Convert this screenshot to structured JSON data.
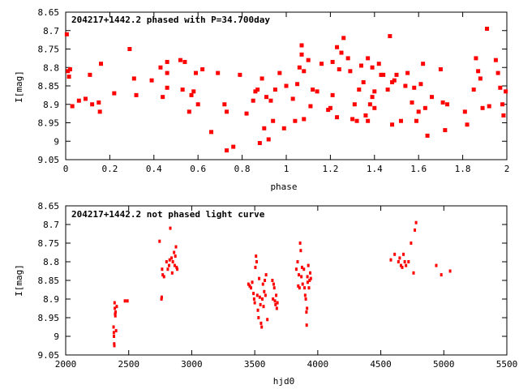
{
  "marker_color": "#ff0000",
  "chart_data": [
    {
      "type": "scatter",
      "title": "204217+1442.2 phased with P=34.700day",
      "xlabel": "phase",
      "ylabel": "I[mag]",
      "xlim": [
        0,
        2
      ],
      "ylim": [
        9.05,
        8.65
      ],
      "y_inverted": true,
      "grid": false,
      "xticks": [
        0,
        0.2,
        0.4,
        0.6,
        0.8,
        1,
        1.2,
        1.4,
        1.6,
        1.8,
        2
      ],
      "xtick_labels": [
        "0",
        "0.2",
        "0.4",
        "0.6",
        "0.8",
        "1",
        "1.2",
        "1.4",
        "1.6",
        "1.8",
        "2"
      ],
      "yticks": [
        8.65,
        8.7,
        8.75,
        8.8,
        8.85,
        8.9,
        8.95,
        9,
        9.05
      ],
      "ytick_labels": [
        "8.65",
        "8.7",
        "8.75",
        "8.8",
        "8.85",
        "8.9",
        "8.95",
        "9",
        "9.05"
      ],
      "series": [
        {
          "marker": "filled-square",
          "points": [
            [
              0.005,
              8.71
            ],
            [
              0.01,
              8.81
            ],
            [
              0.015,
              8.825
            ],
            [
              0.02,
              8.805
            ],
            [
              0.03,
              8.905
            ],
            [
              0.06,
              8.89
            ],
            [
              0.09,
              8.885
            ],
            [
              0.11,
              8.82
            ],
            [
              0.12,
              8.9
            ],
            [
              0.15,
              8.895
            ],
            [
              0.155,
              8.92
            ],
            [
              0.16,
              8.79
            ],
            [
              0.22,
              8.87
            ],
            [
              0.29,
              8.75
            ],
            [
              0.31,
              8.83
            ],
            [
              0.32,
              8.875
            ],
            [
              0.39,
              8.835
            ],
            [
              0.43,
              8.8
            ],
            [
              0.44,
              8.88
            ],
            [
              0.46,
              8.815
            ],
            [
              0.46,
              8.855
            ],
            [
              0.46,
              8.785
            ],
            [
              0.52,
              8.78
            ],
            [
              0.53,
              8.86
            ],
            [
              0.54,
              8.785
            ],
            [
              0.56,
              8.92
            ],
            [
              0.57,
              8.875
            ],
            [
              0.58,
              8.865
            ],
            [
              0.59,
              8.815
            ],
            [
              0.6,
              8.9
            ],
            [
              0.62,
              8.805
            ],
            [
              0.66,
              8.975
            ],
            [
              0.69,
              8.815
            ],
            [
              0.72,
              8.9
            ],
            [
              0.73,
              8.92
            ],
            [
              0.73,
              9.025
            ],
            [
              0.76,
              9.015
            ],
            [
              0.79,
              8.82
            ],
            [
              0.82,
              8.925
            ],
            [
              0.85,
              8.89
            ],
            [
              0.86,
              8.865
            ],
            [
              0.87,
              8.86
            ],
            [
              0.88,
              9.005
            ],
            [
              0.89,
              8.83
            ],
            [
              0.9,
              8.965
            ],
            [
              0.91,
              8.88
            ],
            [
              0.92,
              8.995
            ],
            [
              0.93,
              8.89
            ],
            [
              0.94,
              8.945
            ],
            [
              0.95,
              8.86
            ],
            [
              0.97,
              8.815
            ],
            [
              0.99,
              8.965
            ],
            [
              1.0,
              8.85
            ],
            [
              1.03,
              8.885
            ],
            [
              1.04,
              8.945
            ],
            [
              1.05,
              8.845
            ],
            [
              1.06,
              8.8
            ],
            [
              1.07,
              8.74
            ],
            [
              1.07,
              8.765
            ],
            [
              1.08,
              8.94
            ],
            [
              1.08,
              8.81
            ],
            [
              1.1,
              8.78
            ],
            [
              1.11,
              8.905
            ],
            [
              1.12,
              8.86
            ],
            [
              1.14,
              8.865
            ],
            [
              1.16,
              8.79
            ],
            [
              1.19,
              8.915
            ],
            [
              1.2,
              8.91
            ],
            [
              1.21,
              8.785
            ],
            [
              1.21,
              8.875
            ],
            [
              1.23,
              8.745
            ],
            [
              1.23,
              8.935
            ],
            [
              1.24,
              8.805
            ],
            [
              1.25,
              8.76
            ],
            [
              1.26,
              8.72
            ],
            [
              1.28,
              8.775
            ],
            [
              1.29,
              8.81
            ],
            [
              1.3,
              8.94
            ],
            [
              1.31,
              8.9
            ],
            [
              1.32,
              8.945
            ],
            [
              1.33,
              8.86
            ],
            [
              1.34,
              8.795
            ],
            [
              1.35,
              8.84
            ],
            [
              1.36,
              8.93
            ],
            [
              1.37,
              8.775
            ],
            [
              1.37,
              8.945
            ],
            [
              1.38,
              8.9
            ],
            [
              1.39,
              8.88
            ],
            [
              1.39,
              8.8
            ],
            [
              1.4,
              8.91
            ],
            [
              1.4,
              8.865
            ],
            [
              1.42,
              8.79
            ],
            [
              1.43,
              8.82
            ],
            [
              1.44,
              8.82
            ],
            [
              1.46,
              8.86
            ],
            [
              1.47,
              8.715
            ],
            [
              1.48,
              8.955
            ],
            [
              1.48,
              8.84
            ],
            [
              1.49,
              8.835
            ],
            [
              1.5,
              8.82
            ],
            [
              1.52,
              8.945
            ],
            [
              1.54,
              8.85
            ],
            [
              1.55,
              8.815
            ],
            [
              1.57,
              8.895
            ],
            [
              1.58,
              8.855
            ],
            [
              1.59,
              8.945
            ],
            [
              1.6,
              8.92
            ],
            [
              1.61,
              8.845
            ],
            [
              1.62,
              8.79
            ],
            [
              1.63,
              8.91
            ],
            [
              1.64,
              8.985
            ],
            [
              1.66,
              8.88
            ],
            [
              1.7,
              8.805
            ],
            [
              1.71,
              8.895
            ],
            [
              1.72,
              8.97
            ],
            [
              1.73,
              8.9
            ],
            [
              1.81,
              8.92
            ],
            [
              1.82,
              8.955
            ],
            [
              1.85,
              8.86
            ],
            [
              1.86,
              8.775
            ],
            [
              1.87,
              8.81
            ],
            [
              1.88,
              8.83
            ],
            [
              1.89,
              8.91
            ],
            [
              1.91,
              8.695
            ],
            [
              1.92,
              8.905
            ],
            [
              1.95,
              8.78
            ],
            [
              1.96,
              8.815
            ],
            [
              1.97,
              8.855
            ],
            [
              1.98,
              8.9
            ],
            [
              1.985,
              8.93
            ],
            [
              1.995,
              8.865
            ]
          ]
        }
      ]
    },
    {
      "type": "scatter",
      "title": "204217+1442.2 not phased light curve",
      "xlabel": "hjd0",
      "ylabel": "I[mag]",
      "xlim": [
        2000,
        5500
      ],
      "ylim": [
        9.05,
        8.65
      ],
      "y_inverted": true,
      "grid": false,
      "xticks": [
        2000,
        2500,
        3000,
        3500,
        4000,
        4500,
        5000,
        5500
      ],
      "xtick_labels": [
        "2000",
        "2500",
        "3000",
        "3500",
        "4000",
        "4500",
        "5000",
        "5500"
      ],
      "yticks": [
        8.65,
        8.7,
        8.75,
        8.8,
        8.85,
        8.9,
        8.95,
        9,
        9.05
      ],
      "ytick_labels": [
        "8.65",
        "8.7",
        "8.75",
        "8.8",
        "8.85",
        "8.9",
        "8.95",
        "9",
        "9.05"
      ],
      "series": [
        {
          "marker": "small-dot",
          "points": [
            [
              2380,
              8.975
            ],
            [
              2382,
              8.99
            ],
            [
              2383,
              9.0
            ],
            [
              2385,
              9.02
            ],
            [
              2386,
              9.025
            ],
            [
              2388,
              8.91
            ],
            [
              2390,
              8.925
            ],
            [
              2392,
              8.94
            ],
            [
              2394,
              8.945
            ],
            [
              2396,
              8.935
            ],
            [
              2400,
              8.985
            ],
            [
              2405,
              8.92
            ],
            [
              2470,
              8.905
            ],
            [
              2490,
              8.905
            ],
            [
              2745,
              8.745
            ],
            [
              2760,
              8.9
            ],
            [
              2762,
              8.895
            ],
            [
              2765,
              8.82
            ],
            [
              2770,
              8.835
            ],
            [
              2780,
              8.84
            ],
            [
              2800,
              8.8
            ],
            [
              2810,
              8.82
            ],
            [
              2820,
              8.81
            ],
            [
              2825,
              8.795
            ],
            [
              2830,
              8.71
            ],
            [
              2840,
              8.79
            ],
            [
              2845,
              8.83
            ],
            [
              2850,
              8.8
            ],
            [
              2860,
              8.775
            ],
            [
              2865,
              8.81
            ],
            [
              2870,
              8.785
            ],
            [
              2875,
              8.76
            ],
            [
              2880,
              8.815
            ],
            [
              2885,
              8.82
            ],
            [
              3450,
              8.86
            ],
            [
              3460,
              8.865
            ],
            [
              3470,
              8.87
            ],
            [
              3480,
              8.855
            ],
            [
              3490,
              8.885
            ],
            [
              3495,
              8.9
            ],
            [
              3500,
              8.91
            ],
            [
              3505,
              8.815
            ],
            [
              3510,
              8.785
            ],
            [
              3515,
              8.8
            ],
            [
              3520,
              8.89
            ],
            [
              3525,
              8.93
            ],
            [
              3530,
              8.95
            ],
            [
              3535,
              8.845
            ],
            [
              3540,
              8.895
            ],
            [
              3545,
              8.915
            ],
            [
              3550,
              8.965
            ],
            [
              3555,
              8.975
            ],
            [
              3560,
              8.9
            ],
            [
              3565,
              8.86
            ],
            [
              3570,
              8.92
            ],
            [
              3575,
              8.88
            ],
            [
              3580,
              8.85
            ],
            [
              3585,
              8.89
            ],
            [
              3590,
              8.835
            ],
            [
              3600,
              8.955
            ],
            [
              3640,
              8.85
            ],
            [
              3645,
              8.9
            ],
            [
              3650,
              8.86
            ],
            [
              3655,
              8.87
            ],
            [
              3660,
              8.905
            ],
            [
              3665,
              8.915
            ],
            [
              3670,
              8.89
            ],
            [
              3675,
              8.925
            ],
            [
              3680,
              8.91
            ],
            [
              3830,
              8.82
            ],
            [
              3840,
              8.8
            ],
            [
              3845,
              8.865
            ],
            [
              3850,
              8.835
            ],
            [
              3855,
              8.87
            ],
            [
              3860,
              8.75
            ],
            [
              3865,
              8.77
            ],
            [
              3870,
              8.84
            ],
            [
              3875,
              8.815
            ],
            [
              3880,
              8.86
            ],
            [
              3890,
              8.82
            ],
            [
              3895,
              8.87
            ],
            [
              3900,
              8.89
            ],
            [
              3905,
              8.9
            ],
            [
              3910,
              8.935
            ],
            [
              3912,
              8.97
            ],
            [
              3915,
              8.925
            ],
            [
              3918,
              8.84
            ],
            [
              3920,
              8.855
            ],
            [
              3925,
              8.81
            ],
            [
              3930,
              8.87
            ],
            [
              3935,
              8.85
            ],
            [
              3940,
              8.83
            ],
            [
              3945,
              8.845
            ],
            [
              4580,
              8.795
            ],
            [
              4610,
              8.78
            ],
            [
              4640,
              8.8
            ],
            [
              4650,
              8.79
            ],
            [
              4660,
              8.81
            ],
            [
              4670,
              8.815
            ],
            [
              4680,
              8.78
            ],
            [
              4690,
              8.8
            ],
            [
              4700,
              8.81
            ],
            [
              4720,
              8.8
            ],
            [
              4740,
              8.75
            ],
            [
              4760,
              8.83
            ],
            [
              4770,
              8.715
            ],
            [
              4780,
              8.695
            ],
            [
              4940,
              8.81
            ],
            [
              4980,
              8.835
            ],
            [
              5050,
              8.825
            ]
          ]
        }
      ]
    }
  ]
}
